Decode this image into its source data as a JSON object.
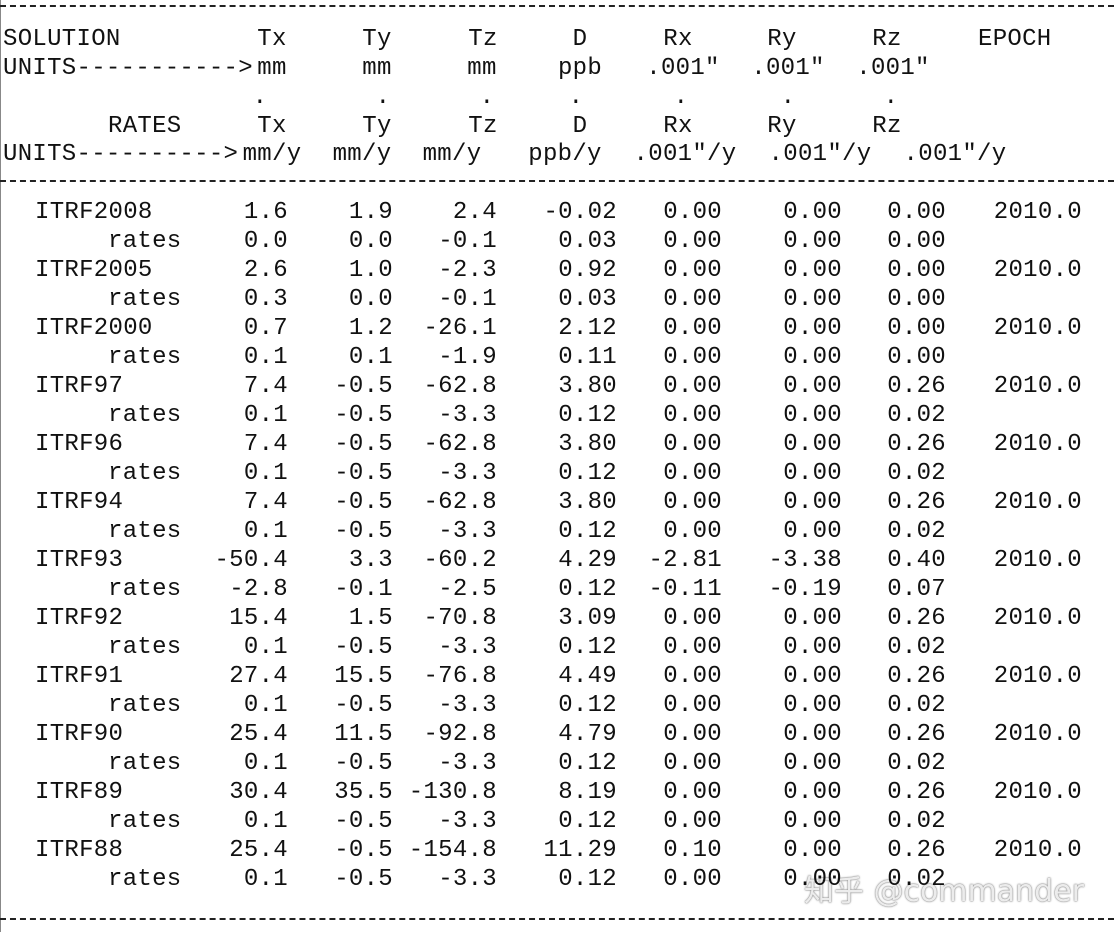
{
  "header": {
    "solution_row": [
      "SOLUTION",
      "Tx",
      "Ty",
      "Tz",
      "D",
      "Rx",
      "Ry",
      "Rz",
      "EPOCH"
    ],
    "units_row": [
      "UNITS----------->",
      "mm",
      "mm",
      "mm",
      "ppb",
      ".001″",
      ".001″",
      ".001″"
    ],
    "dots_row": [
      ".",
      ".",
      ".",
      ".",
      ".",
      ".",
      "."
    ],
    "rates_row": [
      "RATES",
      "Tx",
      "Ty",
      "Tz",
      "D",
      "Rx",
      "Ry",
      "Rz"
    ],
    "rate_units_row": [
      "UNITS---------->",
      "mm/y",
      "mm/y",
      "mm/y",
      "ppb/y",
      ".001″/y",
      ".001″/y",
      ".001″/y"
    ]
  },
  "table": {
    "rows": [
      {
        "name": "ITRF2008",
        "values": [
          "1.6",
          "1.9",
          "2.4",
          "-0.02",
          "0.00",
          "0.00",
          "0.00",
          "2010.0"
        ],
        "rates_label": "rates",
        "rates": [
          "0.0",
          "0.0",
          "-0.1",
          "0.03",
          "0.00",
          "0.00",
          "0.00"
        ]
      },
      {
        "name": "ITRF2005",
        "values": [
          "2.6",
          "1.0",
          "-2.3",
          "0.92",
          "0.00",
          "0.00",
          "0.00",
          "2010.0"
        ],
        "rates_label": "rates",
        "rates": [
          "0.3",
          "0.0",
          "-0.1",
          "0.03",
          "0.00",
          "0.00",
          "0.00"
        ]
      },
      {
        "name": "ITRF2000",
        "values": [
          "0.7",
          "1.2",
          "-26.1",
          "2.12",
          "0.00",
          "0.00",
          "0.00",
          "2010.0"
        ],
        "rates_label": "rates",
        "rates": [
          "0.1",
          "0.1",
          "-1.9",
          "0.11",
          "0.00",
          "0.00",
          "0.00"
        ]
      },
      {
        "name": "ITRF97",
        "values": [
          "7.4",
          "-0.5",
          "-62.8",
          "3.80",
          "0.00",
          "0.00",
          "0.26",
          "2010.0"
        ],
        "rates_label": "rates",
        "rates": [
          "0.1",
          "-0.5",
          "-3.3",
          "0.12",
          "0.00",
          "0.00",
          "0.02"
        ]
      },
      {
        "name": "ITRF96",
        "values": [
          "7.4",
          "-0.5",
          "-62.8",
          "3.80",
          "0.00",
          "0.00",
          "0.26",
          "2010.0"
        ],
        "rates_label": "rates",
        "rates": [
          "0.1",
          "-0.5",
          "-3.3",
          "0.12",
          "0.00",
          "0.00",
          "0.02"
        ]
      },
      {
        "name": "ITRF94",
        "values": [
          "7.4",
          "-0.5",
          "-62.8",
          "3.80",
          "0.00",
          "0.00",
          "0.26",
          "2010.0"
        ],
        "rates_label": "rates",
        "rates": [
          "0.1",
          "-0.5",
          "-3.3",
          "0.12",
          "0.00",
          "0.00",
          "0.02"
        ]
      },
      {
        "name": "ITRF93",
        "values": [
          "-50.4",
          "3.3",
          "-60.2",
          "4.29",
          "-2.81",
          "-3.38",
          "0.40",
          "2010.0"
        ],
        "rates_label": "rates",
        "rates": [
          "-2.8",
          "-0.1",
          "-2.5",
          "0.12",
          "-0.11",
          "-0.19",
          "0.07"
        ]
      },
      {
        "name": "ITRF92",
        "values": [
          "15.4",
          "1.5",
          "-70.8",
          "3.09",
          "0.00",
          "0.00",
          "0.26",
          "2010.0"
        ],
        "rates_label": "rates",
        "rates": [
          "0.1",
          "-0.5",
          "-3.3",
          "0.12",
          "0.00",
          "0.00",
          "0.02"
        ]
      },
      {
        "name": "ITRF91",
        "values": [
          "27.4",
          "15.5",
          "-76.8",
          "4.49",
          "0.00",
          "0.00",
          "0.26",
          "2010.0"
        ],
        "rates_label": "rates",
        "rates": [
          "0.1",
          "-0.5",
          "-3.3",
          "0.12",
          "0.00",
          "0.00",
          "0.02"
        ]
      },
      {
        "name": "ITRF90",
        "values": [
          "25.4",
          "11.5",
          "-92.8",
          "4.79",
          "0.00",
          "0.00",
          "0.26",
          "2010.0"
        ],
        "rates_label": "rates",
        "rates": [
          "0.1",
          "-0.5",
          "-3.3",
          "0.12",
          "0.00",
          "0.00",
          "0.02"
        ]
      },
      {
        "name": "ITRF89",
        "values": [
          "30.4",
          "35.5",
          "-130.8",
          "8.19",
          "0.00",
          "0.00",
          "0.26",
          "2010.0"
        ],
        "rates_label": "rates",
        "rates": [
          "0.1",
          "-0.5",
          "-3.3",
          "0.12",
          "0.00",
          "0.00",
          "0.02"
        ]
      },
      {
        "name": "ITRF88",
        "values": [
          "25.4",
          "-0.5",
          "-154.8",
          "11.29",
          "0.10",
          "0.00",
          "0.26",
          "2010.0"
        ],
        "rates_label": "rates",
        "rates": [
          "0.1",
          "-0.5",
          "-3.3",
          "0.12",
          "0.00",
          "0.00",
          "0.02"
        ]
      }
    ]
  },
  "watermark": "知乎 @commander"
}
